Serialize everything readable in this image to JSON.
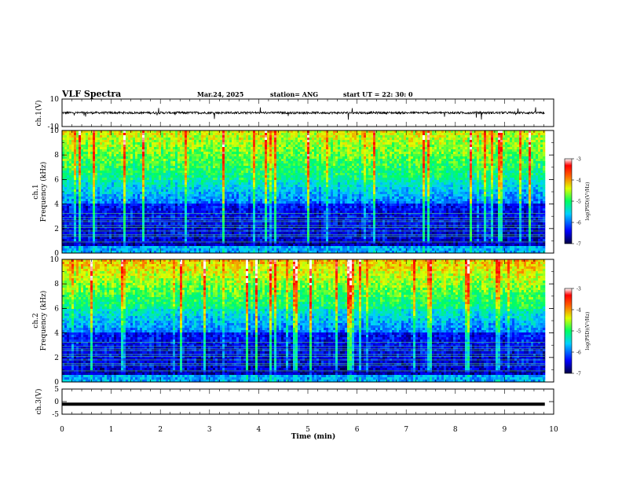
{
  "header": {
    "title": "VLF Spectra",
    "date": "Mar.24, 2025",
    "station": "station= ANG",
    "start": "start  UT =   22: 30: 0"
  },
  "chart_data": [
    {
      "type": "line",
      "panel": "ch1-waveform",
      "ylabel": "ch.1(V)",
      "ylim": [
        -10,
        10
      ],
      "yticks": [
        10,
        -10
      ],
      "xlim": [
        0,
        10
      ],
      "description_level_V": 0,
      "series": [
        {
          "values": [
            0
          ]
        }
      ]
    },
    {
      "type": "heatmap",
      "panel": "ch1-spectrogram",
      "ylabel": "Frequency (kHz)",
      "channel_label": "ch.1",
      "ylim": [
        0,
        10
      ],
      "yticks": [
        0,
        2,
        4,
        6,
        8,
        10
      ],
      "xlim": [
        0,
        10
      ],
      "colorbar": {
        "label": "log(PSD)(V²/Hz)",
        "range": [
          -7,
          -3
        ],
        "ticks": [
          -3,
          -4,
          -5,
          -6,
          -7
        ]
      }
    },
    {
      "type": "heatmap",
      "panel": "ch2-spectrogram",
      "ylabel": "Frequency (kHz)",
      "channel_label": "ch.2",
      "ylim": [
        0,
        10
      ],
      "yticks": [
        0,
        2,
        4,
        6,
        8,
        10
      ],
      "xlim": [
        0,
        10
      ],
      "colorbar": {
        "label": "log(PSD)(V²/Hz)",
        "range": [
          -7,
          -3
        ],
        "ticks": [
          -3,
          -4,
          -5,
          -6,
          -7
        ]
      }
    },
    {
      "type": "line",
      "panel": "ch3-waveform",
      "ylabel": "ch.3(V)",
      "ylim": [
        -5,
        5
      ],
      "yticks": [
        5,
        0,
        -5
      ],
      "xlim": [
        0,
        10
      ],
      "series": [
        {
          "values": [
            -1
          ]
        }
      ]
    }
  ],
  "xaxis": {
    "label": "Time (min)",
    "ticks": [
      "0",
      "1",
      "2",
      "3",
      "4",
      "5",
      "6",
      "7",
      "8",
      "9",
      "10"
    ],
    "range": [
      0,
      10
    ],
    "data_end": 9.82
  },
  "colors": {
    "frame": "#000000",
    "background": "#ffffff"
  }
}
